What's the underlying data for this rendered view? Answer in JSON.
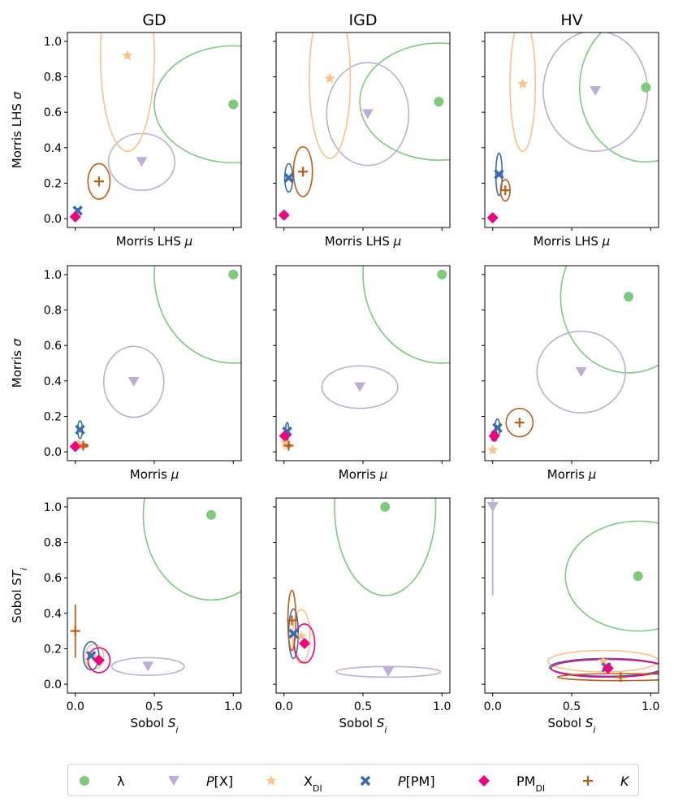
{
  "colors": {
    "lambda": "#7fc97f",
    "px": "#beaed4",
    "xdi": "#fdc086",
    "ppm": "#386cb0",
    "pmdi": "#f0027f",
    "k": "#bf5b17"
  },
  "column_titles": [
    "GD",
    "IGD",
    "HV"
  ],
  "legend": [
    {
      "key": "lambda",
      "marker": "circle",
      "label": "λ"
    },
    {
      "key": "px",
      "marker": "triangle-down",
      "label_italic": "P",
      "label_rest": "[X]"
    },
    {
      "key": "xdi",
      "marker": "star",
      "label": "X",
      "label_sub": "DI"
    },
    {
      "key": "ppm",
      "marker": "x",
      "label_italic": "P",
      "label_rest": "[PM]"
    },
    {
      "key": "pmdi",
      "marker": "diamond",
      "label": "PM",
      "label_sub": "DI"
    },
    {
      "key": "k",
      "marker": "plus",
      "label_italic": "K"
    }
  ],
  "chart_data": [
    {
      "type": "scatter",
      "row": 0,
      "col": 0,
      "title": "GD",
      "xlabel": "Morris LHS  μ",
      "ylabel": "Morris LHS  σ",
      "xlim": [
        -0.05,
        1.05
      ],
      "ylim": [
        -0.05,
        1.05
      ],
      "xticks": [
        0,
        0.5,
        1.0
      ],
      "yticks": [
        0.0,
        0.2,
        0.4,
        0.6,
        0.8,
        1.0
      ],
      "show_xticklabels": false,
      "points": [
        {
          "series": "lambda",
          "x": 1.0,
          "y": 0.645,
          "ex": 0.5,
          "ey": 0.33
        },
        {
          "series": "px",
          "x": 0.42,
          "y": 0.32,
          "ex": 0.21,
          "ey": 0.16
        },
        {
          "series": "xdi",
          "x": 0.33,
          "y": 0.92,
          "ex": 0.17,
          "ey": 0.54
        },
        {
          "series": "ppm",
          "x": 0.015,
          "y": 0.045,
          "ex": 0.01,
          "ey": 0.01
        },
        {
          "series": "pmdi",
          "x": 0.0,
          "y": 0.01,
          "ex": 0,
          "ey": 0
        },
        {
          "series": "k",
          "x": 0.15,
          "y": 0.21,
          "ex": 0.07,
          "ey": 0.1
        }
      ]
    },
    {
      "type": "scatter",
      "row": 0,
      "col": 1,
      "title": "IGD",
      "xlabel": "Morris LHS  μ",
      "ylabel": "",
      "xlim": [
        -0.05,
        1.05
      ],
      "ylim": [
        -0.05,
        1.05
      ],
      "xticks": [
        0,
        0.5,
        1.0
      ],
      "yticks": [
        0.0,
        0.2,
        0.4,
        0.6,
        0.8,
        1.0
      ],
      "show_xticklabels": false,
      "points": [
        {
          "series": "lambda",
          "x": 0.98,
          "y": 0.66,
          "ex": 0.5,
          "ey": 0.33
        },
        {
          "series": "px",
          "x": 0.53,
          "y": 0.59,
          "ex": 0.26,
          "ey": 0.29
        },
        {
          "series": "xdi",
          "x": 0.29,
          "y": 0.79,
          "ex": 0.13,
          "ey": 0.45
        },
        {
          "series": "ppm",
          "x": 0.03,
          "y": 0.23,
          "ex": 0.025,
          "ey": 0.08
        },
        {
          "series": "pmdi",
          "x": 0.0,
          "y": 0.02,
          "ex": 0,
          "ey": 0
        },
        {
          "series": "k",
          "x": 0.12,
          "y": 0.265,
          "ex": 0.06,
          "ey": 0.14
        }
      ]
    },
    {
      "type": "scatter",
      "row": 0,
      "col": 2,
      "title": "HV",
      "xlabel": "Morris LHS  μ",
      "ylabel": "",
      "xlim": [
        -0.05,
        1.05
      ],
      "ylim": [
        -0.05,
        1.05
      ],
      "xticks": [
        0,
        0.5,
        1.0
      ],
      "yticks": [
        0.0,
        0.2,
        0.4,
        0.6,
        0.8,
        1.0
      ],
      "show_xticklabels": false,
      "points": [
        {
          "series": "lambda",
          "x": 0.97,
          "y": 0.74,
          "ex": 0.42,
          "ey": 0.42
        },
        {
          "series": "px",
          "x": 0.65,
          "y": 0.72,
          "ex": 0.33,
          "ey": 0.34
        },
        {
          "series": "xdi",
          "x": 0.19,
          "y": 0.76,
          "ex": 0.08,
          "ey": 0.38
        },
        {
          "series": "ppm",
          "x": 0.04,
          "y": 0.25,
          "ex": 0.02,
          "ey": 0.12
        },
        {
          "series": "pmdi",
          "x": 0.0,
          "y": 0.005,
          "ex": 0,
          "ey": 0
        },
        {
          "series": "k",
          "x": 0.08,
          "y": 0.16,
          "ex": 0.03,
          "ey": 0.06
        }
      ]
    },
    {
      "type": "scatter",
      "row": 1,
      "col": 0,
      "xlabel": "Morris  μ",
      "ylabel": "Morris  σ",
      "xlim": [
        -0.05,
        1.05
      ],
      "ylim": [
        -0.05,
        1.05
      ],
      "xticks": [
        0,
        0.5,
        1.0
      ],
      "yticks": [
        0.0,
        0.2,
        0.4,
        0.6,
        0.8,
        1.0
      ],
      "show_xticklabels": false,
      "points": [
        {
          "series": "lambda",
          "x": 1.0,
          "y": 1.0,
          "ex": 0.5,
          "ey": 0.5
        },
        {
          "series": "px",
          "x": 0.37,
          "y": 0.395,
          "ex": 0.19,
          "ey": 0.2
        },
        {
          "series": "xdi",
          "x": 0.02,
          "y": 0.04,
          "ex": 0.02,
          "ey": 0.02
        },
        {
          "series": "ppm",
          "x": 0.03,
          "y": 0.125,
          "ex": 0.015,
          "ey": 0.05
        },
        {
          "series": "pmdi",
          "x": 0.0,
          "y": 0.03,
          "ex": 0.02,
          "ey": 0.02
        },
        {
          "series": "k",
          "x": 0.05,
          "y": 0.035,
          "ex": 0.03,
          "ey": 0.01
        }
      ]
    },
    {
      "type": "scatter",
      "row": 1,
      "col": 1,
      "xlabel": "Morris  μ",
      "ylabel": "",
      "xlim": [
        -0.05,
        1.05
      ],
      "ylim": [
        -0.05,
        1.05
      ],
      "xticks": [
        0,
        0.5,
        1.0
      ],
      "yticks": [
        0.0,
        0.2,
        0.4,
        0.6,
        0.8,
        1.0
      ],
      "show_xticklabels": false,
      "points": [
        {
          "series": "lambda",
          "x": 1.0,
          "y": 1.0,
          "ex": 0.5,
          "ey": 0.5
        },
        {
          "series": "px",
          "x": 0.48,
          "y": 0.365,
          "ex": 0.24,
          "ey": 0.12
        },
        {
          "series": "xdi",
          "x": 0.01,
          "y": 0.05,
          "ex": 0.015,
          "ey": 0.03
        },
        {
          "series": "ppm",
          "x": 0.02,
          "y": 0.115,
          "ex": 0.01,
          "ey": 0.05
        },
        {
          "series": "pmdi",
          "x": 0.005,
          "y": 0.09,
          "ex": 0.01,
          "ey": 0.02
        },
        {
          "series": "k",
          "x": 0.03,
          "y": 0.035,
          "ex": 0.01,
          "ey": 0.01
        }
      ]
    },
    {
      "type": "scatter",
      "row": 1,
      "col": 2,
      "xlabel": "Morris  μ",
      "ylabel": "",
      "xlim": [
        -0.05,
        1.05
      ],
      "ylim": [
        -0.05,
        1.05
      ],
      "xticks": [
        0,
        0.5,
        1.0
      ],
      "yticks": [
        0.0,
        0.2,
        0.4,
        0.6,
        0.8,
        1.0
      ],
      "show_xticklabels": false,
      "points": [
        {
          "series": "lambda",
          "x": 0.86,
          "y": 0.875,
          "ex": 0.43,
          "ey": 0.43
        },
        {
          "series": "px",
          "x": 0.56,
          "y": 0.45,
          "ex": 0.28,
          "ey": 0.23
        },
        {
          "series": "xdi",
          "x": 0.0,
          "y": 0.01,
          "ex": 0,
          "ey": 0
        },
        {
          "series": "ppm",
          "x": 0.03,
          "y": 0.135,
          "ex": 0.015,
          "ey": 0.05
        },
        {
          "series": "pmdi",
          "x": 0.01,
          "y": 0.09,
          "ex": 0.02,
          "ey": 0.03
        },
        {
          "series": "k",
          "x": 0.17,
          "y": 0.165,
          "ex": 0.085,
          "ey": 0.08
        }
      ]
    },
    {
      "type": "scatter",
      "row": 2,
      "col": 0,
      "xlabel": "Sobol  S_i",
      "ylabel": "Sobol  ST_i",
      "xlim": [
        -0.05,
        1.05
      ],
      "ylim": [
        -0.05,
        1.05
      ],
      "xticks": [
        0.0,
        0.5,
        1.0
      ],
      "yticks": [
        0.0,
        0.2,
        0.4,
        0.6,
        0.8,
        1.0
      ],
      "show_xticklabels": true,
      "xticklabels": [
        "0.0",
        "0.5",
        "1.0"
      ],
      "points": [
        {
          "series": "lambda",
          "x": 0.86,
          "y": 0.955,
          "ex": 0.43,
          "ey": 0.48
        },
        {
          "series": "px",
          "x": 0.46,
          "y": 0.1,
          "ex": 0.23,
          "ey": 0.05
        },
        {
          "series": "xdi",
          "x": 0.12,
          "y": 0.155,
          "ex": 0.06,
          "ey": 0.07
        },
        {
          "series": "ppm",
          "x": 0.1,
          "y": 0.16,
          "ex": 0.05,
          "ey": 0.08
        },
        {
          "series": "pmdi",
          "x": 0.15,
          "y": 0.135,
          "ex": 0.07,
          "ey": 0.07
        },
        {
          "series": "k",
          "x": 0.0,
          "y": 0.3,
          "ex": 0,
          "ey": 0.15
        }
      ]
    },
    {
      "type": "scatter",
      "row": 2,
      "col": 1,
      "xlabel": "Sobol  S_i",
      "ylabel": "",
      "xlim": [
        -0.05,
        1.05
      ],
      "ylim": [
        -0.05,
        1.05
      ],
      "xticks": [
        0.0,
        0.5,
        1.0
      ],
      "yticks": [
        0.0,
        0.2,
        0.4,
        0.6,
        0.8,
        1.0
      ],
      "show_xticklabels": true,
      "xticklabels": [
        "0.0",
        "0.5",
        "1.0"
      ],
      "points": [
        {
          "series": "lambda",
          "x": 0.64,
          "y": 1.0,
          "ex": 0.32,
          "ey": 0.5
        },
        {
          "series": "px",
          "x": 0.66,
          "y": 0.07,
          "ex": 0.33,
          "ey": 0.03
        },
        {
          "series": "xdi",
          "x": 0.11,
          "y": 0.27,
          "ex": 0.055,
          "ey": 0.15
        },
        {
          "series": "ppm",
          "x": 0.06,
          "y": 0.285,
          "ex": 0.03,
          "ey": 0.14
        },
        {
          "series": "pmdi",
          "x": 0.13,
          "y": 0.23,
          "ex": 0.065,
          "ey": 0.11
        },
        {
          "series": "k",
          "x": 0.05,
          "y": 0.36,
          "ex": 0.025,
          "ey": 0.17
        }
      ]
    },
    {
      "type": "scatter",
      "row": 2,
      "col": 2,
      "xlabel": "Sobol  S_i",
      "ylabel": "",
      "xlim": [
        -0.05,
        1.05
      ],
      "ylim": [
        -0.05,
        1.05
      ],
      "xticks": [
        0.0,
        0.5,
        1.0
      ],
      "yticks": [
        0.0,
        0.2,
        0.4,
        0.6,
        0.8,
        1.0
      ],
      "show_xticklabels": true,
      "xticklabels": [
        "0.0",
        "0.5",
        "1.0"
      ],
      "points": [
        {
          "series": "lambda",
          "x": 0.92,
          "y": 0.61,
          "ex": 0.46,
          "ey": 0.31
        },
        {
          "series": "px",
          "x": 0.0,
          "y": 1.0,
          "ex": 0,
          "ey": 0.5
        },
        {
          "series": "xdi",
          "x": 0.7,
          "y": 0.13,
          "ex": 0.35,
          "ey": 0.06
        },
        {
          "series": "ppm",
          "x": 0.72,
          "y": 0.095,
          "ex": 0.36,
          "ey": 0.05
        },
        {
          "series": "pmdi",
          "x": 0.73,
          "y": 0.09,
          "ex": 0.36,
          "ey": 0.05
        },
        {
          "series": "k",
          "x": 0.81,
          "y": 0.04,
          "ex": 0.4,
          "ey": 0.02
        }
      ]
    }
  ]
}
